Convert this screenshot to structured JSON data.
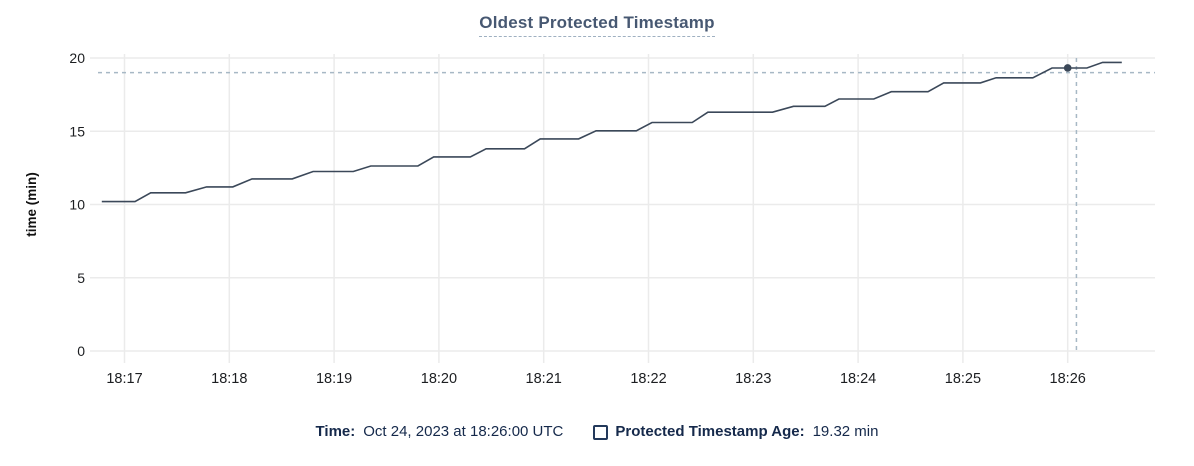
{
  "chart_data": {
    "type": "line",
    "title": "Oldest Protected Timestamp",
    "xlabel": "",
    "ylabel": "time (min)",
    "ylim": [
      0,
      20
    ],
    "yticks": [
      0,
      5,
      10,
      15,
      20
    ],
    "grid": true,
    "legend_position": "bottom",
    "x_axis": {
      "tick_labels": [
        "18:17",
        "18:18",
        "18:19",
        "18:20",
        "18:21",
        "18:22",
        "18:23",
        "18:24",
        "18:25",
        "18:26"
      ],
      "seconds_per_tick": 60,
      "domain_seconds": [
        -20,
        590
      ]
    },
    "series": [
      {
        "name": "Protected Timestamp Age",
        "unit": "min",
        "points": [
          [
            -13,
            10.2
          ],
          [
            6,
            10.2
          ],
          [
            15,
            10.8
          ],
          [
            35,
            10.8
          ],
          [
            47,
            11.2
          ],
          [
            62,
            11.2
          ],
          [
            73,
            11.75
          ],
          [
            96,
            11.75
          ],
          [
            108,
            12.25
          ],
          [
            131,
            12.25
          ],
          [
            141,
            12.63
          ],
          [
            168,
            12.63
          ],
          [
            177,
            13.25
          ],
          [
            198,
            13.25
          ],
          [
            207,
            13.8
          ],
          [
            229,
            13.8
          ],
          [
            238,
            14.48
          ],
          [
            260,
            14.48
          ],
          [
            270,
            15.03
          ],
          [
            293,
            15.03
          ],
          [
            302,
            15.6
          ],
          [
            325,
            15.6
          ],
          [
            334,
            16.3
          ],
          [
            371,
            16.3
          ],
          [
            383,
            16.7
          ],
          [
            401,
            16.7
          ],
          [
            409,
            17.2
          ],
          [
            429,
            17.2
          ],
          [
            439,
            17.7
          ],
          [
            460,
            17.7
          ],
          [
            469,
            18.3
          ],
          [
            490,
            18.3
          ],
          [
            499,
            18.65
          ],
          [
            520,
            18.65
          ],
          [
            531,
            19.32
          ],
          [
            551,
            19.32
          ],
          [
            560,
            19.7
          ],
          [
            571,
            19.7
          ]
        ]
      }
    ],
    "hover": {
      "snap_point": {
        "t_seconds": 540,
        "value": 19.32
      },
      "crosshair": {
        "t_seconds": 545,
        "value": 19.0
      }
    }
  },
  "legend": {
    "time_label": "Time:",
    "time_value": "Oct 24, 2023 at 18:26:00 UTC",
    "series_label": "Protected Timestamp Age:",
    "series_value": "19.32 min"
  },
  "colors": {
    "line": "#3b4859",
    "point": "#3b4859",
    "grid": "#ebebeb",
    "crosshair": "#a7b8c5",
    "title": "#475872",
    "title_underline": "#9fb0c1",
    "axis_text": "#1c1e21",
    "legend_text": "#15294b"
  }
}
